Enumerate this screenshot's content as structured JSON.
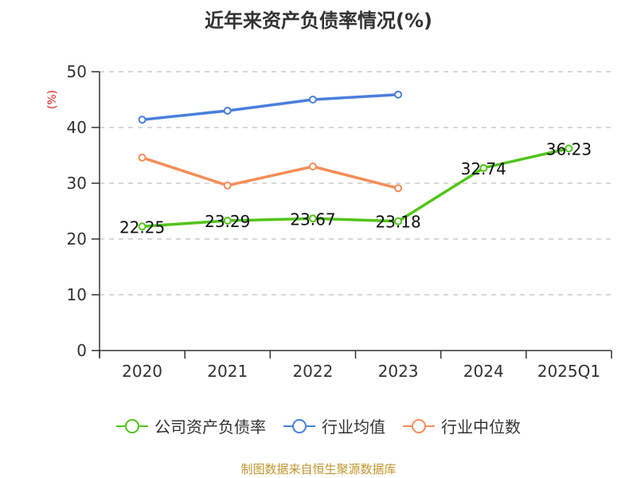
{
  "title": "近年来资产负债率情况(%)",
  "y_unit": "(%)",
  "source": "制图数据来自恒生聚源数据库",
  "legend": [
    {
      "label": "公司资产负债率",
      "color": "#52c41a"
    },
    {
      "label": "行业均值",
      "color": "#4a7fdc"
    },
    {
      "label": "行业中位数",
      "color": "#f58d58"
    }
  ],
  "chart_data": {
    "type": "line",
    "title": "近年来资产负债率情况(%)",
    "xlabel": "",
    "ylabel": "(%)",
    "categories": [
      "2020",
      "2021",
      "2022",
      "2023",
      "2024",
      "2025Q1"
    ],
    "ylim": [
      0,
      50
    ],
    "yticks": [
      0,
      10,
      20,
      30,
      40,
      50
    ],
    "grid": true,
    "legend_position": "bottom",
    "series": [
      {
        "name": "公司资产负债率",
        "color": "#52c41a",
        "values": [
          22.25,
          23.29,
          23.67,
          23.18,
          32.74,
          36.23
        ],
        "labels": [
          "22.25",
          "23.29",
          "23.67",
          "23.18",
          "32.74",
          "36.23"
        ]
      },
      {
        "name": "行业均值",
        "color": "#4a7fdc",
        "values": [
          41.4,
          43.0,
          45.0,
          45.9,
          null,
          null
        ]
      },
      {
        "name": "行业中位数",
        "color": "#f58d58",
        "values": [
          34.6,
          29.6,
          33.0,
          29.1,
          null,
          null
        ]
      }
    ]
  }
}
